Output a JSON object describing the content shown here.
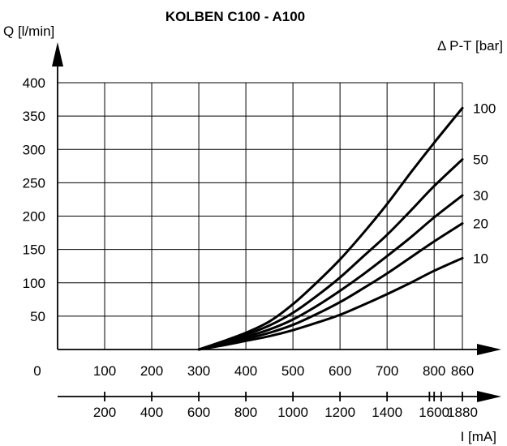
{
  "chart_data": {
    "type": "line",
    "title": "KOLBEN C100 - A100",
    "ylabel": "Q [l/min]",
    "legend_title": "Δ P-T  [bar]",
    "xlim": [
      0,
      860
    ],
    "ylim": [
      0,
      400
    ],
    "x_ticks": [
      0,
      100,
      200,
      300,
      400,
      500,
      600,
      700,
      800,
      860
    ],
    "y_ticks": [
      50,
      100,
      150,
      200,
      250,
      300,
      350,
      400
    ],
    "y_tick_labels": [
      "50",
      "100",
      "150",
      "200",
      "250",
      "300",
      "350",
      "400"
    ],
    "x_tick_labels": [
      "0",
      "100",
      "200",
      "300",
      "400",
      "500",
      "600",
      "700",
      "800",
      "860"
    ],
    "secondary_axis": {
      "label": "I [mA]",
      "ticks": [
        {
          "value": 200,
          "label": "200"
        },
        {
          "value": 400,
          "label": "400"
        },
        {
          "value": 600,
          "label": "600"
        },
        {
          "value": 800,
          "label": "800"
        },
        {
          "value": 1000,
          "label": "1000"
        },
        {
          "value": 1200,
          "label": "1200"
        },
        {
          "value": 1400,
          "label": "1400"
        },
        {
          "value": 1600,
          "label": "1600"
        },
        {
          "value": 1880,
          "label": "1880"
        }
      ]
    },
    "series": [
      {
        "name": "100",
        "x": [
          300,
          350,
          400,
          450,
          500,
          550,
          600,
          650,
          700,
          750,
          800,
          860
        ],
        "y": [
          0,
          12,
          25,
          42,
          68,
          100,
          135,
          175,
          218,
          265,
          310,
          362
        ]
      },
      {
        "name": "50",
        "x": [
          300,
          350,
          400,
          450,
          500,
          550,
          600,
          650,
          700,
          750,
          800,
          860
        ],
        "y": [
          0,
          10,
          22,
          36,
          55,
          80,
          108,
          140,
          172,
          208,
          245,
          285
        ]
      },
      {
        "name": "30",
        "x": [
          300,
          350,
          400,
          450,
          500,
          550,
          600,
          650,
          700,
          750,
          800,
          860
        ],
        "y": [
          0,
          9,
          19,
          30,
          45,
          65,
          88,
          113,
          140,
          168,
          198,
          231
        ]
      },
      {
        "name": "20",
        "x": [
          300,
          350,
          400,
          450,
          500,
          550,
          600,
          650,
          700,
          750,
          800,
          860
        ],
        "y": [
          0,
          8,
          16,
          25,
          37,
          53,
          71,
          92,
          114,
          138,
          162,
          189
        ]
      },
      {
        "name": "10",
        "x": [
          300,
          350,
          400,
          450,
          500,
          550,
          600,
          650,
          700,
          750,
          800,
          860
        ],
        "y": [
          0,
          6,
          13,
          20,
          29,
          40,
          52,
          67,
          83,
          100,
          118,
          137
        ]
      }
    ]
  }
}
